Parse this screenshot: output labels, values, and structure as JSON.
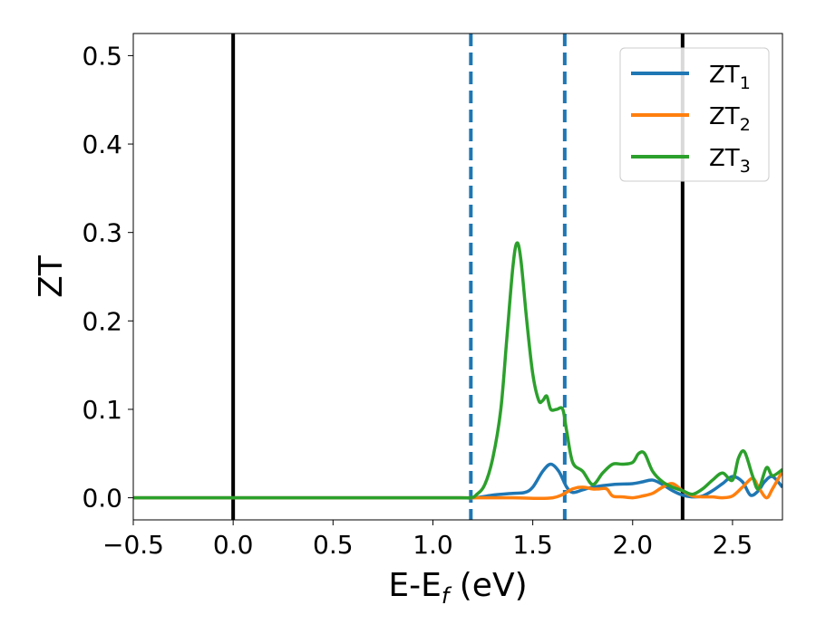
{
  "chart_data": {
    "type": "line",
    "title": "",
    "xlabel": {
      "main": "E-E",
      "sub": "f",
      "suffix": " (eV)"
    },
    "ylabel": "ZT",
    "xlim": [
      -0.5,
      2.75
    ],
    "ylim": [
      -0.025,
      0.525
    ],
    "xticks": [
      {
        "value": -0.5,
        "label": "−0.5"
      },
      {
        "value": 0.0,
        "label": "0.0"
      },
      {
        "value": 0.5,
        "label": "0.5"
      },
      {
        "value": 1.0,
        "label": "1.0"
      },
      {
        "value": 1.5,
        "label": "1.5"
      },
      {
        "value": 2.0,
        "label": "2.0"
      },
      {
        "value": 2.5,
        "label": "2.5"
      }
    ],
    "yticks": [
      {
        "value": 0.0,
        "label": "0.0"
      },
      {
        "value": 0.1,
        "label": "0.1"
      },
      {
        "value": 0.2,
        "label": "0.2"
      },
      {
        "value": 0.3,
        "label": "0.3"
      },
      {
        "value": 0.4,
        "label": "0.4"
      },
      {
        "value": 0.5,
        "label": "0.5"
      }
    ],
    "grid": false,
    "legend_position": "top-right",
    "vlines": [
      {
        "x": 0.0,
        "style": "solid",
        "color": "#000000"
      },
      {
        "x": 2.25,
        "style": "solid",
        "color": "#000000"
      },
      {
        "x": 1.19,
        "style": "dashed",
        "color": "#1f77b4"
      },
      {
        "x": 1.66,
        "style": "dashed",
        "color": "#1f77b4"
      }
    ],
    "series": [
      {
        "name": "ZT",
        "sub": "1",
        "color": "#1f77b4",
        "x": [
          -0.5,
          1.0,
          1.2,
          1.3,
          1.4,
          1.46,
          1.5,
          1.55,
          1.59,
          1.63,
          1.67,
          1.7,
          1.75,
          1.8,
          1.9,
          2.0,
          2.05,
          2.1,
          2.15,
          2.2,
          2.25,
          2.3,
          2.35,
          2.4,
          2.45,
          2.5,
          2.55,
          2.59,
          2.63,
          2.66,
          2.7,
          2.75
        ],
        "y": [
          0.0,
          0.0,
          0.0,
          0.003,
          0.005,
          0.006,
          0.012,
          0.03,
          0.038,
          0.03,
          0.012,
          0.006,
          0.009,
          0.012,
          0.015,
          0.016,
          0.018,
          0.02,
          0.015,
          0.008,
          0.003,
          0.001,
          0.002,
          0.008,
          0.016,
          0.024,
          0.018,
          0.003,
          0.008,
          0.018,
          0.024,
          0.012
        ]
      },
      {
        "name": "ZT",
        "sub": "2",
        "color": "#ff7f0e",
        "x": [
          -0.5,
          1.0,
          1.2,
          1.4,
          1.6,
          1.7,
          1.75,
          1.8,
          1.83,
          1.87,
          1.9,
          1.95,
          2.0,
          2.05,
          2.1,
          2.15,
          2.2,
          2.25,
          2.3,
          2.35,
          2.4,
          2.45,
          2.5,
          2.55,
          2.6,
          2.63,
          2.67,
          2.7,
          2.75
        ],
        "y": [
          0.0,
          0.0,
          0.0,
          0.0,
          0.0,
          0.01,
          0.012,
          0.01,
          0.01,
          0.01,
          0.002,
          0.001,
          0.0,
          0.002,
          0.005,
          0.012,
          0.016,
          0.008,
          0.002,
          0.001,
          0.001,
          0.0,
          0.002,
          0.012,
          0.022,
          0.012,
          0.0,
          0.01,
          0.03
        ]
      },
      {
        "name": "ZT",
        "sub": "3",
        "color": "#2ca02c",
        "x": [
          -0.5,
          1.0,
          1.18,
          1.22,
          1.26,
          1.3,
          1.34,
          1.37,
          1.4,
          1.42,
          1.44,
          1.47,
          1.5,
          1.53,
          1.55,
          1.57,
          1.59,
          1.62,
          1.65,
          1.67,
          1.7,
          1.75,
          1.8,
          1.85,
          1.9,
          1.95,
          2.0,
          2.03,
          2.06,
          2.1,
          2.15,
          2.2,
          2.25,
          2.3,
          2.35,
          2.4,
          2.45,
          2.5,
          2.53,
          2.56,
          2.6,
          2.63,
          2.67,
          2.7,
          2.75
        ],
        "y": [
          0.0,
          0.0,
          0.0,
          0.004,
          0.015,
          0.045,
          0.1,
          0.18,
          0.26,
          0.288,
          0.27,
          0.2,
          0.14,
          0.11,
          0.11,
          0.115,
          0.1,
          0.1,
          0.1,
          0.075,
          0.04,
          0.03,
          0.015,
          0.028,
          0.038,
          0.038,
          0.04,
          0.05,
          0.05,
          0.03,
          0.018,
          0.012,
          0.008,
          0.004,
          0.01,
          0.02,
          0.028,
          0.02,
          0.045,
          0.052,
          0.025,
          0.01,
          0.034,
          0.025,
          0.032
        ]
      }
    ]
  }
}
